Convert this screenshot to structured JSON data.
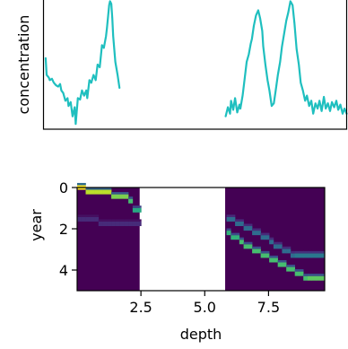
{
  "chart_data": [
    {
      "type": "line",
      "title": "",
      "xlabel": "",
      "ylabel": "concentration",
      "xlim": [
        0.0,
        9.7
      ],
      "ylim": [
        0.0,
        1.0
      ],
      "xticks_visible": false,
      "yticks_visible": false,
      "grid": false,
      "series": [
        {
          "color": "#1fbfbf",
          "segments": [
            {
              "x": [
                0.07,
                0.1,
                0.17,
                0.2,
                0.27,
                0.33,
                0.4,
                0.47,
                0.53,
                0.57,
                0.63,
                0.7,
                0.77,
                0.8,
                0.87,
                0.93,
                1.0,
                1.03,
                1.1,
                1.17,
                1.23,
                1.3,
                1.37,
                1.4,
                1.47,
                1.53,
                1.6,
                1.67,
                1.73,
                1.8,
                1.87,
                1.93,
                2.0,
                2.03,
                2.07,
                2.1,
                2.13,
                2.17,
                2.2,
                2.23,
                2.3,
                2.37,
                2.43
              ],
              "y": [
                0.55,
                0.42,
                0.4,
                0.38,
                0.39,
                0.36,
                0.34,
                0.33,
                0.35,
                0.3,
                0.28,
                0.22,
                0.24,
                0.18,
                0.21,
                0.1,
                0.17,
                0.04,
                0.24,
                0.23,
                0.3,
                0.26,
                0.3,
                0.24,
                0.38,
                0.36,
                0.42,
                0.38,
                0.5,
                0.48,
                0.65,
                0.63,
                0.72,
                0.78,
                0.88,
                0.96,
                0.99,
                0.97,
                0.86,
                0.72,
                0.52,
                0.42,
                0.32
              ]
            },
            {
              "x": [
                5.83,
                5.9,
                5.97,
                6.0,
                6.07,
                6.13,
                6.2,
                6.27,
                6.3,
                6.37,
                6.43,
                6.5,
                6.57,
                6.63,
                6.67,
                6.73,
                6.8,
                6.87,
                6.93,
                7.0,
                7.03,
                7.1,
                7.17,
                7.23,
                7.3,
                7.37,
                7.43,
                7.5,
                7.57,
                7.63,
                7.7,
                7.77,
                7.83,
                7.9,
                7.97,
                8.03,
                8.1,
                8.17,
                8.23,
                8.3,
                8.37,
                8.43,
                8.5,
                8.57,
                8.63,
                8.7,
                8.77,
                8.83,
                8.9,
                8.97,
                9.03,
                9.1,
                9.17,
                9.23,
                9.3,
                9.37,
                9.43,
                9.5,
                9.57,
                9.63,
                9.7
              ],
              "y": [
                0.1,
                0.17,
                0.12,
                0.22,
                0.15,
                0.24,
                0.13,
                0.19,
                0.16,
                0.26,
                0.38,
                0.52,
                0.58,
                0.66,
                0.7,
                0.8,
                0.88,
                0.92,
                0.86,
                0.76,
                0.64,
                0.5,
                0.38,
                0.3,
                0.18,
                0.2,
                0.3,
                0.42,
                0.52,
                0.64,
                0.74,
                0.84,
                0.9,
                0.99,
                0.96,
                0.82,
                0.62,
                0.5,
                0.36,
                0.3,
                0.22,
                0.26,
                0.18,
                0.22,
                0.12,
                0.2,
                0.16,
                0.22,
                0.14,
                0.25,
                0.16,
                0.2,
                0.14,
                0.21,
                0.17,
                0.22,
                0.15,
                0.19,
                0.12,
                0.16,
                0.12
              ]
            }
          ]
        }
      ]
    },
    {
      "type": "heatmap",
      "title": "",
      "xlabel": "depth",
      "ylabel": "year",
      "xlim": [
        0.0,
        9.7
      ],
      "ylim": [
        5,
        0
      ],
      "x_ticks": [
        "2.5",
        "5.0",
        "7.5"
      ],
      "y_ticks": [
        "0",
        "2",
        "4"
      ],
      "colormap": "viridis",
      "background": "#440154",
      "missing_x_range": [
        2.45,
        5.8
      ],
      "grid": false,
      "ridges": [
        {
          "x": [
            0.0,
            0.35
          ],
          "y": [
            0.08,
            0.08
          ],
          "value": 1.0
        },
        {
          "x": [
            0.35,
            1.35
          ],
          "y": [
            0.22,
            0.22
          ],
          "value": 0.9
        },
        {
          "x": [
            1.35,
            1.95
          ],
          "y": [
            0.45,
            0.45
          ],
          "value": 0.8
        },
        {
          "x": [
            1.95,
            2.25
          ],
          "y": [
            0.73,
            0.73
          ],
          "value": 0.7
        },
        {
          "x": [
            2.25,
            2.45
          ],
          "y": [
            1.05,
            1.05
          ],
          "value": 0.6
        },
        {
          "x": [
            5.8,
            6.3
          ],
          "y": [
            2.2,
            2.4
          ],
          "value": 0.65
        },
        {
          "x": [
            6.3,
            9.0
          ],
          "y": [
            2.65,
            4.38
          ],
          "value": 0.7
        },
        {
          "x": [
            9.0,
            9.7
          ],
          "y": [
            4.38,
            4.38
          ],
          "value": 0.75
        },
        {
          "x": [
            5.8,
            6.1
          ],
          "y": [
            1.35,
            1.55
          ],
          "value": 0.35
        },
        {
          "x": [
            6.1,
            8.6
          ],
          "y": [
            1.55,
            3.35
          ],
          "value": 0.35
        },
        {
          "x": [
            8.6,
            9.7
          ],
          "y": [
            3.35,
            3.35
          ],
          "value": 0.4
        },
        {
          "x": [
            0.0,
            2.45
          ],
          "y": [
            1.6,
            1.75
          ],
          "value": 0.12
        }
      ]
    }
  ]
}
